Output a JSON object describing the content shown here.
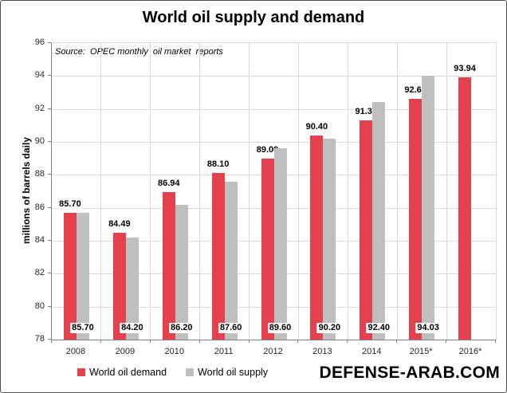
{
  "title": "World oil supply and demand",
  "source_note": "Source:  OPEC monthly  oil market  reports",
  "y_axis_label": "millions of barrels daily",
  "watermark": "DEFENSE-ARAB.COM",
  "colors": {
    "demand": "#E4414F",
    "supply": "#BFBFBF",
    "gridline": "#D9D9D9",
    "axis": "#808080",
    "text": "#000000"
  },
  "legend": [
    {
      "label": "World oil demand",
      "color": "#E4414F"
    },
    {
      "label": "World oil supply",
      "color": "#BFBFBF"
    }
  ],
  "chart_data": {
    "type": "bar",
    "title": "World oil supply and demand",
    "categories": [
      "2008",
      "2009",
      "2010",
      "2011",
      "2012",
      "2013",
      "2014",
      "2015*",
      "2016*"
    ],
    "series": [
      {
        "name": "World oil demand",
        "color": "#E4414F",
        "values": [
          85.7,
          84.49,
          86.94,
          88.1,
          89.0,
          90.4,
          91.3,
          92.61,
          93.94
        ],
        "label_position": "above-bar"
      },
      {
        "name": "World oil supply",
        "color": "#BFBFBF",
        "values": [
          85.7,
          84.2,
          86.2,
          87.6,
          89.6,
          90.2,
          92.4,
          94.03,
          null
        ],
        "label_position": "bar-base"
      }
    ],
    "xlabel": "",
    "ylabel": "millions of barrels daily",
    "ylim": [
      78,
      96
    ],
    "ytick_step": 2,
    "grid": true,
    "legend_position": "bottom-left",
    "source_note": "Source:  OPEC monthly  oil market  reports"
  }
}
